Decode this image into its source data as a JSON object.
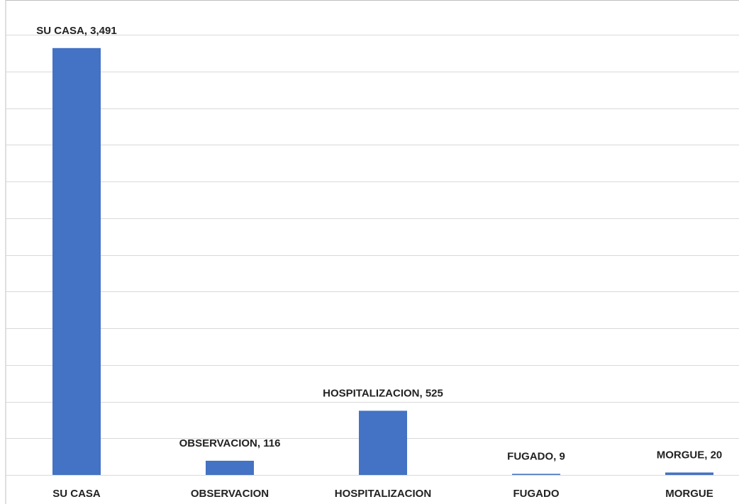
{
  "chart_data": {
    "type": "bar",
    "categories": [
      "SU CASA",
      "OBSERVACION",
      "HOSPITALIZACION",
      "FUGADO",
      "MORGUE"
    ],
    "values": [
      3491,
      116,
      525,
      9,
      20
    ],
    "value_labels": [
      "SU CASA, 3,491",
      "OBSERVACION, 116",
      "HOSPITALIZACION, 525",
      "FUGADO, 9",
      "MORGUE, 20"
    ],
    "color": "#4472c4",
    "ylim": [
      0,
      3600
    ],
    "yticks": [
      0,
      300,
      600,
      900,
      1200,
      1500,
      1800,
      2100,
      2400,
      2700,
      3000,
      3300,
      3600
    ],
    "grid": true
  }
}
